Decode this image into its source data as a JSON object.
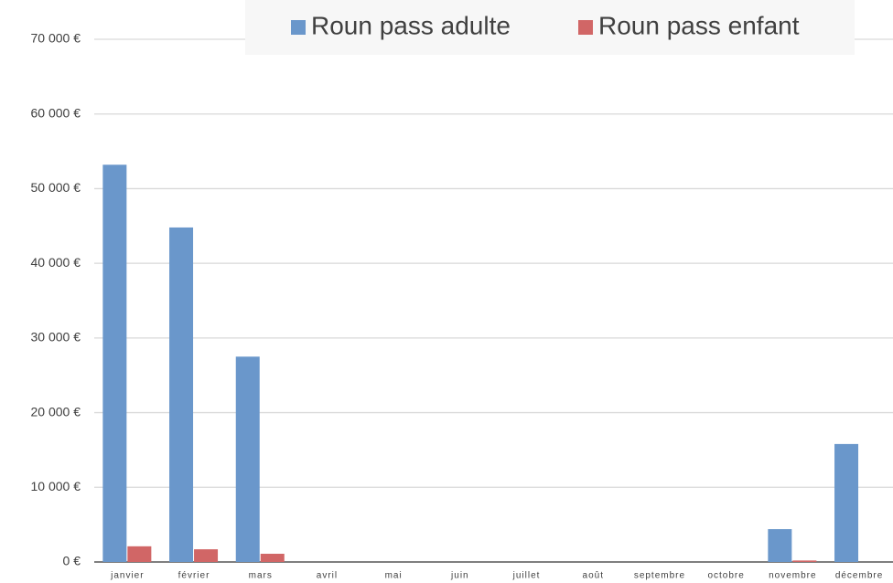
{
  "chart_data": {
    "type": "bar",
    "categories": [
      "janvier",
      "février",
      "mars",
      "avril",
      "mai",
      "juin",
      "juillet",
      "août",
      "septembre",
      "octobre",
      "novembre",
      "décembre"
    ],
    "series": [
      {
        "name": "Roun pass adulte",
        "color": "#6a97cb",
        "values": [
          53200,
          44800,
          27500,
          0,
          0,
          0,
          0,
          0,
          0,
          0,
          4400,
          15800
        ]
      },
      {
        "name": "Roun pass enfant",
        "color": "#d16666",
        "values": [
          2100,
          1700,
          1100,
          0,
          0,
          0,
          0,
          0,
          0,
          0,
          200,
          0
        ]
      }
    ],
    "ylim": [
      0,
      70000
    ],
    "yticks": [
      {
        "value": 0,
        "label": "0 €"
      },
      {
        "value": 10000,
        "label": "10 000 €"
      },
      {
        "value": 20000,
        "label": "20 000 €"
      },
      {
        "value": 30000,
        "label": "30 000 €"
      },
      {
        "value": 40000,
        "label": "40 000 €"
      },
      {
        "value": 50000,
        "label": "50 000 €"
      },
      {
        "value": 60000,
        "label": "60 000 €"
      },
      {
        "value": 70000,
        "label": "70 000 €"
      }
    ],
    "grid": true,
    "legend": "top"
  }
}
